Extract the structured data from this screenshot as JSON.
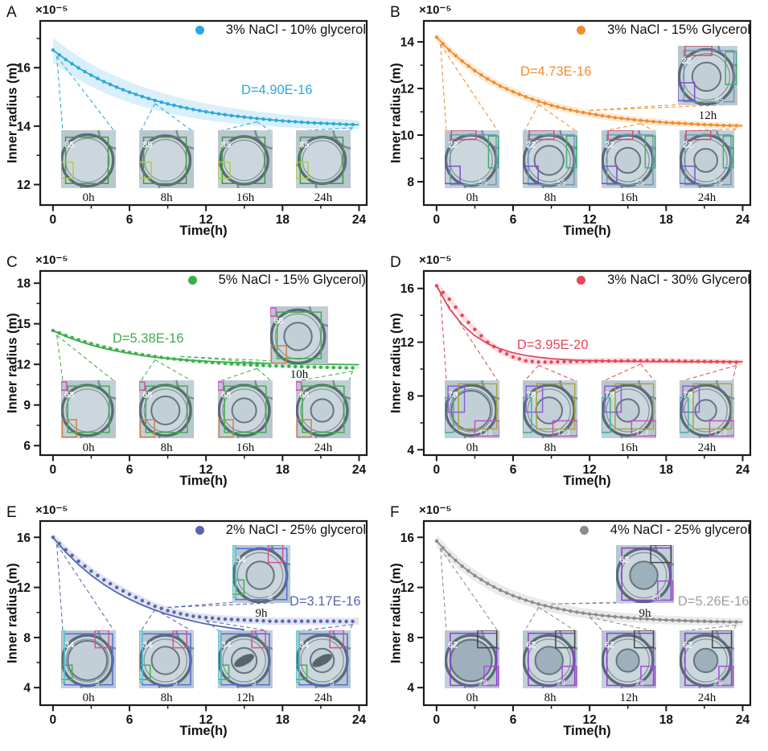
{
  "figure": {
    "x_axis_label": "Time(h)",
    "y_axis_label": "Inner radius (m)",
    "scale_label": "×10⁻⁵",
    "x_ticks": [
      0,
      6,
      12,
      18,
      24
    ],
    "x_minor_ticks": [
      3,
      9,
      15,
      21
    ],
    "x_hours": [
      0,
      1,
      2,
      3,
      4,
      5,
      6,
      7,
      8,
      9,
      10,
      11,
      12,
      13,
      14,
      15,
      16,
      17,
      18,
      19,
      20,
      21,
      22,
      23,
      24
    ]
  },
  "chart_data": [
    {
      "panel": "A",
      "type": "scatter",
      "legend": "3% NaCl - 10% glycerol",
      "diffusion_label": "D=4.90E-16",
      "color": "#2aa7dc",
      "label_color": "#2aa7dc",
      "ylim": [
        11.3,
        17.6
      ],
      "y_ticks": [
        12,
        14,
        16
      ],
      "y_minor_ticks": [
        13,
        15,
        17
      ],
      "radius": [
        16.6,
        16.28,
        15.99,
        15.74,
        15.52,
        15.33,
        15.16,
        15.01,
        14.88,
        14.76,
        14.66,
        14.57,
        14.49,
        14.42,
        14.36,
        14.31,
        14.26,
        14.22,
        14.18,
        14.15,
        14.12,
        14.1,
        14.08,
        14.06,
        14.05
      ],
      "fit": [
        16.6,
        16.28,
        15.99,
        15.74,
        15.52,
        15.33,
        15.16,
        15.01,
        14.88,
        14.76,
        14.66,
        14.57,
        14.49,
        14.42,
        14.36,
        14.31,
        14.26,
        14.22,
        14.18,
        14.15,
        14.12,
        14.1,
        14.08,
        14.06,
        14.05
      ],
      "band_halfwidth": [
        0.42,
        0.15
      ],
      "inset_id": "85",
      "inset_id2": "",
      "inset_labels": [
        "0h",
        "8h",
        "16h",
        "24h"
      ],
      "extra_inset_label": ""
    },
    {
      "panel": "B",
      "type": "scatter",
      "legend": "3% NaCl - 15% Glycerol",
      "diffusion_label": "D=4.73E-16",
      "color": "#ef8e2e",
      "label_color": "#ef8e2e",
      "ylim": [
        7.0,
        14.9
      ],
      "y_ticks": [
        8,
        10,
        12,
        14
      ],
      "y_minor_ticks": [
        9,
        11,
        13
      ],
      "radius": [
        14.2,
        13.64,
        13.17,
        12.76,
        12.41,
        12.11,
        11.86,
        11.64,
        11.45,
        11.28,
        11.14,
        11.02,
        10.92,
        10.83,
        10.75,
        10.69,
        10.63,
        10.58,
        10.54,
        10.51,
        10.48,
        10.45,
        10.43,
        10.41,
        10.4
      ],
      "fit": [
        14.2,
        13.64,
        13.17,
        12.76,
        12.41,
        12.11,
        11.86,
        11.64,
        11.45,
        11.28,
        11.14,
        11.02,
        10.92,
        10.83,
        10.75,
        10.69,
        10.63,
        10.58,
        10.54,
        10.51,
        10.48,
        10.45,
        10.43,
        10.41,
        10.4
      ],
      "band_halfwidth": [
        0.2,
        0.12
      ],
      "inset_id": "22",
      "inset_id2": "55",
      "inset_labels": [
        "0h",
        "8h",
        "16h",
        "24h"
      ],
      "extra_inset_label": "12h"
    },
    {
      "panel": "C",
      "type": "scatter",
      "legend": "5% NaCl - 15% Glycerol)",
      "diffusion_label": "D=5.38E-16",
      "color": "#3bae4b",
      "label_color": "#3bae4b",
      "ylim": [
        5.3,
        18.9
      ],
      "y_ticks": [
        6,
        9,
        12,
        15,
        18
      ],
      "y_minor_ticks": [
        7.5,
        10.5,
        13.5,
        16.5
      ],
      "radius": [
        14.5,
        14.13,
        13.81,
        13.53,
        13.28,
        13.07,
        12.88,
        12.72,
        12.58,
        12.45,
        12.35,
        12.25,
        12.17,
        12.1,
        12.04,
        11.99,
        11.94,
        11.9,
        11.87,
        11.84,
        11.81,
        11.79,
        11.77,
        11.75,
        11.74
      ],
      "fit": [
        14.5,
        14.08,
        13.72,
        13.43,
        13.18,
        12.98,
        12.81,
        12.66,
        12.54,
        12.45,
        12.36,
        12.29,
        12.24,
        12.19,
        12.15,
        12.12,
        12.09,
        12.07,
        12.05,
        12.03,
        12.02,
        12.01,
        12.0,
        11.99,
        11.98
      ],
      "band_halfwidth": [
        0.15,
        0.08
      ],
      "inset_id": "68",
      "inset_id2": "",
      "inset_labels": [
        "0h",
        "8h",
        "16h",
        "24h"
      ],
      "extra_inset_label": "10h"
    },
    {
      "panel": "D",
      "type": "scatter",
      "legend": "3% NaCl - 30% Glycerol",
      "diffusion_label": "D=3.95E-20",
      "color": "#e4475a",
      "label_color": "#e4475a",
      "ylim": [
        3.6,
        17.3
      ],
      "y_ticks": [
        4,
        8,
        12,
        16
      ],
      "y_minor_ticks": [
        6,
        10,
        14
      ],
      "radius": [
        16.2,
        15.2,
        14.0,
        12.95,
        12.0,
        11.35,
        10.9,
        10.62,
        10.52,
        10.52,
        10.55,
        10.57,
        10.58,
        10.6,
        10.6,
        10.62,
        10.62,
        10.63,
        10.62,
        10.6,
        10.58,
        10.57,
        10.55,
        10.52,
        10.5
      ],
      "fit": [
        16.2,
        14.5,
        13.32,
        12.49,
        11.9,
        11.5,
        11.21,
        11.01,
        10.88,
        10.78,
        10.71,
        10.66,
        10.63,
        10.61,
        10.59,
        10.58,
        10.57,
        10.56,
        10.56,
        10.56,
        10.55,
        10.55,
        10.55,
        10.55,
        10.55
      ],
      "band_halfwidth": [
        0.28,
        0.2
      ],
      "inset_id": "79",
      "inset_id2": "123",
      "inset_labels": [
        "0h",
        "8h",
        "16h",
        "24h"
      ],
      "extra_inset_label": ""
    },
    {
      "panel": "E",
      "type": "scatter",
      "legend": "2% NaCl - 25% glycerol",
      "diffusion_label": "D=3.17E-16",
      "color": "#5766ae",
      "label_color": "#5766ae",
      "ylim": [
        2.6,
        17.3
      ],
      "y_ticks": [
        4,
        8,
        12,
        16
      ],
      "y_minor_ticks": [
        6,
        10,
        14
      ],
      "radius": [
        16.0,
        15.0,
        14.1,
        13.3,
        12.6,
        12.0,
        11.45,
        10.95,
        10.5,
        10.15,
        9.9,
        9.7,
        9.6,
        9.5,
        9.45,
        9.4,
        9.35,
        9.3,
        9.3,
        9.3,
        9.3,
        9.3,
        9.3,
        9.28,
        9.3
      ],
      "fit": [
        16.0,
        14.83,
        13.83,
        12.97,
        12.23,
        11.6,
        11.06,
        10.59,
        10.19,
        9.85,
        9.56,
        9.31,
        9.09,
        8.91,
        8.75,
        8.62,
        null,
        null,
        null,
        null,
        null,
        null,
        null,
        null,
        null
      ],
      "band_halfwidth": [
        0.32,
        0.28
      ],
      "inset_id": "34",
      "inset_id2": "5",
      "inset_labels": [
        "0h",
        "8h",
        "12h",
        "24h"
      ],
      "extra_inset_label": "9h"
    },
    {
      "panel": "F",
      "type": "scatter",
      "legend": "4% NaCl - 25% glycerol",
      "diffusion_label": "D=5.26E-16",
      "color": "#8c8c8c",
      "label_color": "#a0a0a0",
      "ylim": [
        2.6,
        17.3
      ],
      "y_ticks": [
        4,
        8,
        12,
        16
      ],
      "y_minor_ticks": [
        6,
        10,
        14
      ],
      "radius": [
        15.7,
        14.61,
        13.7,
        12.94,
        12.31,
        11.78,
        11.34,
        10.98,
        10.67,
        10.42,
        10.21,
        10.03,
        9.88,
        9.76,
        9.66,
        9.58,
        9.51,
        9.45,
        9.4,
        9.36,
        9.32,
        9.3,
        9.27,
        9.25,
        9.24
      ],
      "fit": [
        15.7,
        14.61,
        13.7,
        12.94,
        12.31,
        11.78,
        11.34,
        10.98,
        10.67,
        10.42,
        10.21,
        10.03,
        9.88,
        9.76,
        9.66,
        9.58,
        9.51,
        9.45,
        9.4,
        9.36,
        9.32,
        9.3,
        9.27,
        9.25,
        9.24
      ],
      "band_halfwidth": [
        0.48,
        0.3
      ],
      "inset_id": "62",
      "inset_id2": "28",
      "inset_labels": [
        "0h",
        "8h",
        "12h",
        "24h"
      ],
      "extra_inset_label": "9h"
    }
  ]
}
